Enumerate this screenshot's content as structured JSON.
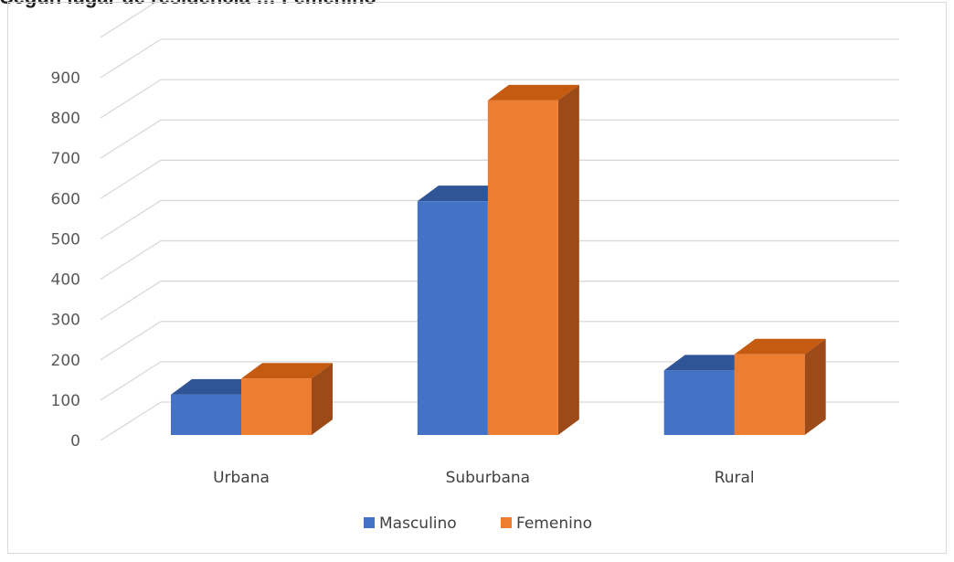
{
  "page": {
    "title": "Según lugar de residencia … Femenino"
  },
  "chart_data": {
    "type": "bar",
    "title": "",
    "xlabel": "",
    "ylabel": "",
    "categories": [
      "Urbana",
      "Suburbana",
      "Rural"
    ],
    "series": [
      {
        "name": "Masculino",
        "values": [
          100,
          580,
          160
        ],
        "color": "#4472C4",
        "top_color": "#2F5597",
        "side_color": "#2F5597"
      },
      {
        "name": "Femenino",
        "values": [
          140,
          830,
          200
        ],
        "color": "#ED7D31",
        "top_color": "#C55A11",
        "side_color": "#9C4A17"
      }
    ],
    "ylim": [
      0,
      900
    ],
    "yticks": [
      "0",
      "100",
      "200",
      "300",
      "400",
      "500",
      "600",
      "700",
      "800",
      "900"
    ],
    "grid": true,
    "legend_position": "bottom",
    "style": "3d-clustered-column"
  }
}
